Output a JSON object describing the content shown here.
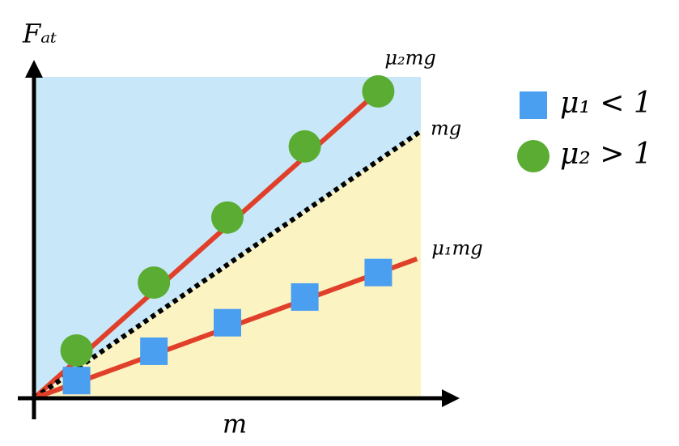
{
  "chart_data": {
    "type": "scatter",
    "x_label": "m",
    "y_label": "Fₐₜ",
    "xlim": [
      0,
      10
    ],
    "ylim": [
      0,
      8
    ],
    "above_color": "#c8e8f9",
    "below_color": "#fbf3c2",
    "series": [
      {
        "name": "μ₁ < 1",
        "color": "#4a9ff0",
        "marker": "square",
        "x": [
          1.1,
          3.1,
          5.0,
          7.0,
          8.9
        ],
        "values": [
          0.44,
          1.17,
          1.88,
          2.52,
          3.13
        ]
      },
      {
        "name": "μ₂ > 1",
        "color": "#5aad32",
        "marker": "circle",
        "x": [
          1.1,
          3.1,
          5.0,
          7.0,
          8.9
        ],
        "values": [
          1.19,
          2.88,
          4.5,
          6.27,
          7.64
        ]
      }
    ],
    "lines": [
      {
        "label": "μ₂mg",
        "color": "#e0402a",
        "style": "solid",
        "x": [
          0,
          8.9
        ],
        "values": [
          0,
          7.64
        ]
      },
      {
        "label": "mg",
        "color": "#000000",
        "style": "dotted",
        "x": [
          0,
          10
        ],
        "values": [
          0,
          6.65
        ]
      },
      {
        "label": "μ₁mg",
        "color": "#e0402a",
        "style": "solid",
        "x": [
          0,
          9.9
        ],
        "values": [
          0,
          3.47
        ]
      }
    ]
  }
}
